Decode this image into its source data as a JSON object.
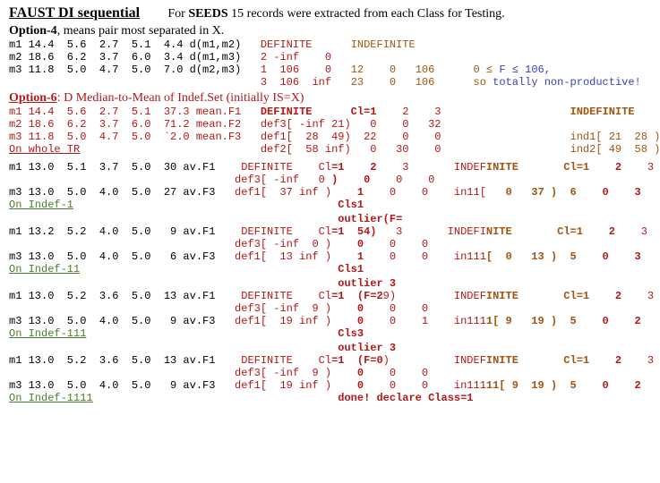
{
  "header": {
    "title": "FAUST DI sequential",
    "subtitle_pre": "For ",
    "subtitle_bold": "SEEDS",
    "subtitle_post": " 15 records were extracted from each Class for Testing."
  },
  "opt4": {
    "label": "Option-4",
    "rest": ", means pair most separated in X.",
    "rows": [
      "m1 14.4  5.6  2.7  5.1  4.4 d(m1,m2)   DEFINITE      INDEFINITE",
      "m2 18.6  6.2  3.7  6.0  3.4 d(m1,m3)   2 -inf    0",
      "m3 11.8  5.0  4.7  5.0  7.0 d(m2,m3)   1  106    0   12    0   106      0 ≤ F ≤ 106,",
      "                                       3  106  inf   23    0   106      so totally non-productive!"
    ]
  },
  "opt6": {
    "label": "Option-6",
    "rest": ": D Median-to-Mean of Indef.Set (initially IS=X)",
    "block_whole": [
      "m1 14.4  5.6  2.7  5.1  37.3 mean.F1   DEFINITE      Cl=1    2    3                    INDEFINITE",
      "m2 18.6  6.2  3.7  6.0  71.2 mean.F2   def3[ -inf 21)   0    0   32",
      "m3 11.8  5.0  4.7  5.0  `2.0 mean.F3   def1[  28  49)  22    0    0                    ind1[ 21  28 )",
      "On whole TR                            def2[  58 inf)   0   30    0                    ind2[ 49  58 )"
    ],
    "indef1": [
      "m1 13.0  5.1  3.7  5.0  30 av.F1    DEFINITE    Cl=1    2    3       INDEFINITE       Cl=1    2    3",
      "                                   def3[ -inf   0 )    0    0    0",
      "m3 13.0  5.0  4.0  5.0  27 av.F3   def1[  37 inf )    1    0    0    in11[   0   37 )  6    0    3",
      "On Indef-1                                         Cls1"
    ],
    "indef11": [
      "                                                   outlier(F=",
      "m1 13.2  5.2  4.0  5.0   9 av.F1    DEFINITE    Cl=1  54)   3       INDEFINITE       Cl=1    2    3",
      "                                   def3[ -inf  0 )    0    0    0",
      "m3 13.0  5.0  4.0  5.0   6 av.F3   def1[  13 inf )    1    0    0    in111[  0   13 )  5    0    3",
      "On Indef-11                                        Cls1"
    ],
    "indef111": [
      "                                                   outlier 3",
      "m1 13.0  5.2  3.6  5.0  13 av.F1    DEFINITE    Cl=1  (F=29)         INDEFINITE       Cl=1    2    3",
      "                                   def3[ -inf  9 )    0    0    0",
      "m3 13.0  5.0  4.0  5.0   9 av.F3   def1[  19 inf )    0    0    1    in1111[ 9   19 )  5    0    2",
      "On Indef-111                                       Cls3"
    ],
    "indef1111": [
      "                                                   outlier 3",
      "m1 13.0  5.2  3.6  5.0  13 av.F1    DEFINITE    Cl=1  (F=0)          INDEFINITE       Cl=1    2    3",
      "                                   def3[ -inf  9 )    0    0    0",
      "m3 13.0  5.0  4.0  5.0   9 av.F3   def1[  19 inf )    0    0    0    in11111[ 9  19 )  5    0    2",
      "On Indef-1111                                      done! declare Class=1"
    ]
  },
  "colors": {
    "red": "#b31818",
    "blue": "#3a40c0",
    "green": "#4a7d2e",
    "brown": "#a05612"
  }
}
